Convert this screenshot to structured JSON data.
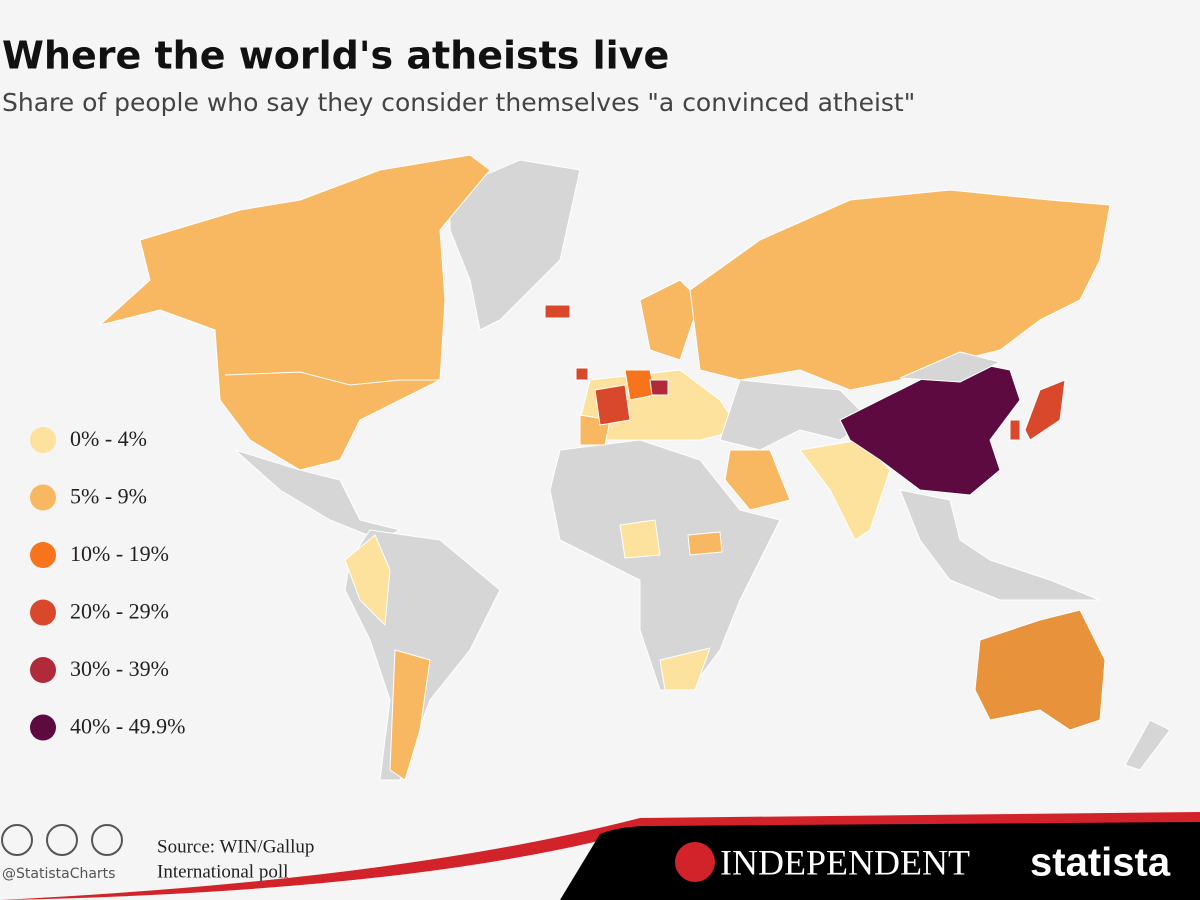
{
  "header": {
    "title": "Where the world's atheists live",
    "subtitle": "Share of people who say they consider themselves \"a convinced atheist\""
  },
  "legend": {
    "items": [
      {
        "label": "0% - 4%",
        "color": "#fde29e"
      },
      {
        "label": "5% - 9%",
        "color": "#f8b862"
      },
      {
        "label": "10% - 19%",
        "color": "#f7741d"
      },
      {
        "label": "20% - 29%",
        "color": "#d9482a"
      },
      {
        "label": "30% - 39%",
        "color": "#b02a3a"
      },
      {
        "label": "40% - 49.9%",
        "color": "#5c0a40"
      }
    ]
  },
  "footer": {
    "handle": "@StatistaCharts",
    "source_lines": [
      "Source: WIN/Gallup",
      "International poll"
    ],
    "brands": [
      "INDEPENDENT",
      "statista"
    ]
  }
}
